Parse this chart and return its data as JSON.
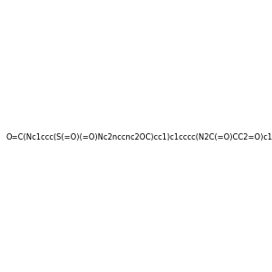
{
  "smiles": "O=C(Nc1ccc(S(=O)(=O)Nc2nccnc2OC)cc1)c1cccc(N2C(=O)CC2=O)c1",
  "image_size": 300,
  "background_color": "#f0f0f0"
}
